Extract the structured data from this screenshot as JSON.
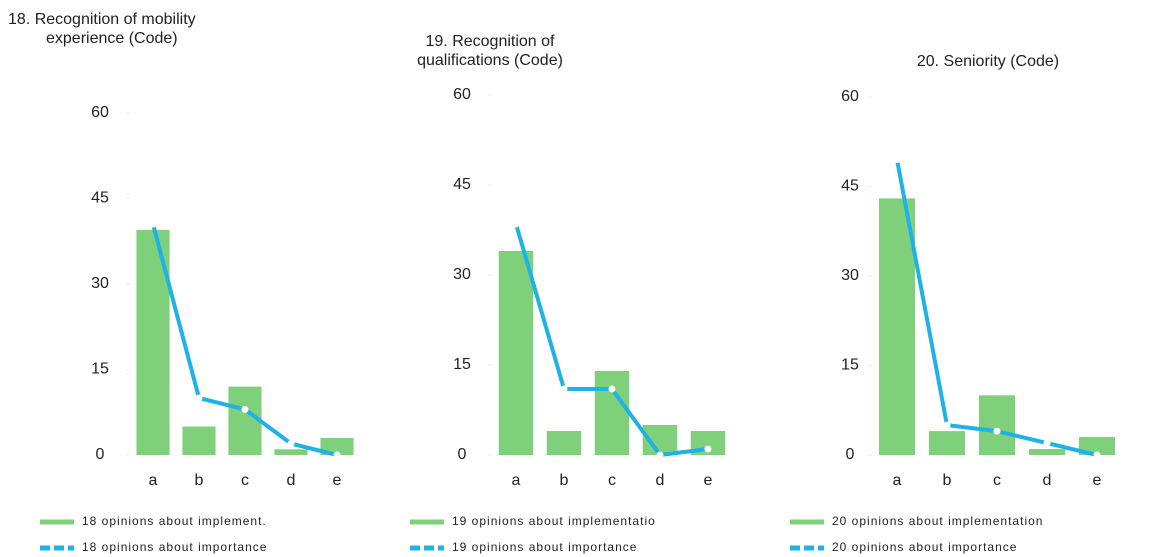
{
  "chart_data": [
    {
      "type": "bar",
      "title": [
        "18. Recognition of mobility",
        "experience (Code)"
      ],
      "categories": [
        "a",
        "b",
        "c",
        "d",
        "e"
      ],
      "ylim": [
        0,
        60
      ],
      "yticks": [
        0,
        15,
        30,
        45,
        60
      ],
      "series": [
        {
          "name": "18 opinions about implement.",
          "type": "bar",
          "color": "#7ed07a",
          "values": [
            39.5,
            5,
            12,
            1,
            3
          ]
        },
        {
          "name": "18 opinions about importance",
          "type": "line",
          "color": "#1fb2e6",
          "values": [
            40.5,
            10,
            8,
            2,
            0
          ]
        }
      ]
    },
    {
      "type": "bar",
      "title": [
        "19. Recognition of",
        "qualifications (Code)"
      ],
      "categories": [
        "a",
        "b",
        "c",
        "d",
        "e"
      ],
      "ylim": [
        0,
        60
      ],
      "yticks": [
        0,
        15,
        30,
        45,
        60
      ],
      "series": [
        {
          "name": "19 opinions about implementatio",
          "type": "bar",
          "color": "#7ed07a",
          "values": [
            34,
            4,
            14,
            5,
            4
          ]
        },
        {
          "name": "19 opinions about importance",
          "type": "line",
          "color": "#1fb2e6",
          "values": [
            38.5,
            11,
            11,
            0,
            1
          ]
        }
      ]
    },
    {
      "type": "bar",
      "title": [
        "20. Seniority (Code)"
      ],
      "categories": [
        "a",
        "b",
        "c",
        "d",
        "e"
      ],
      "ylim": [
        0,
        60
      ],
      "yticks": [
        0,
        15,
        30,
        45,
        60
      ],
      "series": [
        {
          "name": "20 opinions about implementation",
          "type": "bar",
          "color": "#7ed07a",
          "values": [
            43,
            4,
            10,
            1,
            3
          ]
        },
        {
          "name": "20 opinions about importance",
          "type": "line",
          "color": "#1fb2e6",
          "values": [
            49.5,
            5,
            4,
            2,
            0
          ]
        }
      ]
    }
  ]
}
